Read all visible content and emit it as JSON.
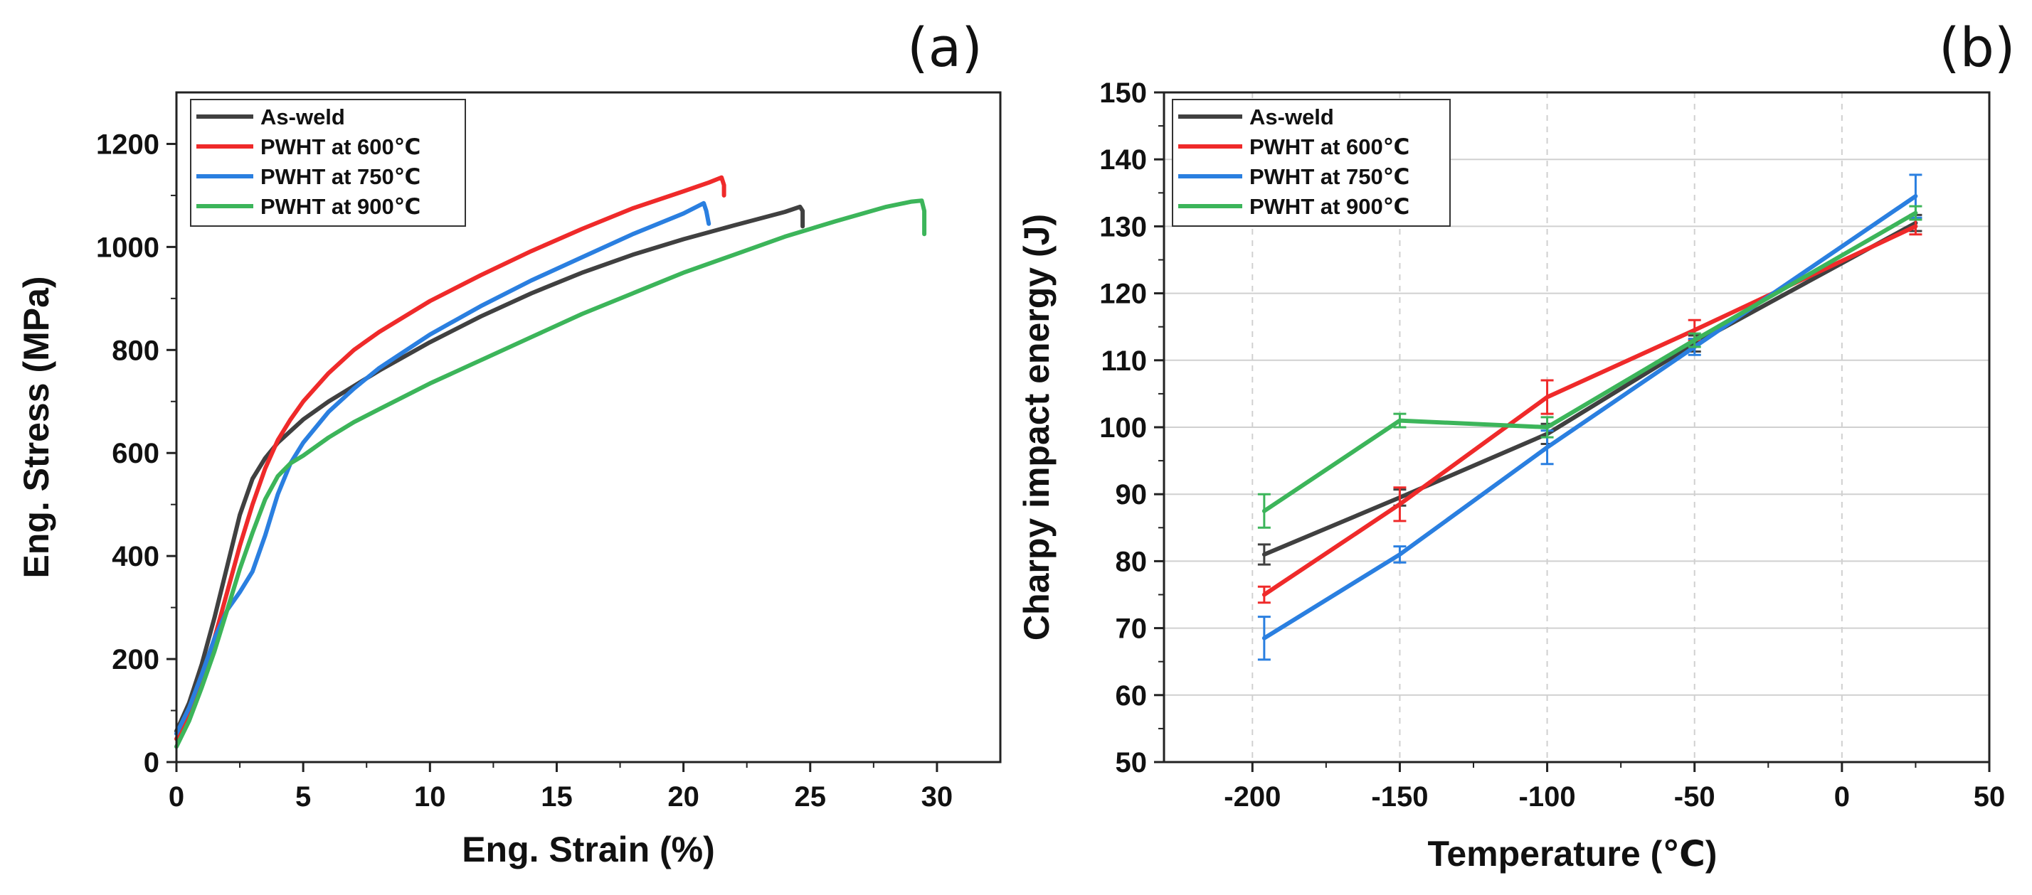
{
  "chart_data": [
    {
      "type": "line",
      "panel_label": "(a)",
      "xlabel": "Eng. Strain (%)",
      "ylabel": "Eng. Stress (MPa)",
      "xlim": [
        0,
        32.5
      ],
      "ylim": [
        0,
        1300
      ],
      "xticks": [
        "0",
        "5",
        "10",
        "15",
        "20",
        "25",
        "30"
      ],
      "yticks": [
        "0",
        "200",
        "400",
        "600",
        "800",
        "1000",
        "1200"
      ],
      "grid": false,
      "legend_position": "top-left",
      "series": [
        {
          "name": "As-weld",
          "color": "#404040",
          "x": [
            0,
            0.5,
            1,
            1.5,
            2,
            2.5,
            3,
            3.5,
            4,
            5,
            6,
            7,
            8,
            10,
            12,
            14,
            16,
            18,
            20,
            22,
            24,
            24.6,
            24.7,
            24.7
          ],
          "y": [
            60,
            115,
            190,
            280,
            380,
            480,
            550,
            590,
            620,
            665,
            700,
            730,
            760,
            815,
            865,
            910,
            950,
            985,
            1015,
            1042,
            1068,
            1078,
            1070,
            1040
          ]
        },
        {
          "name": "PWHT at 600℃",
          "color": "#ef2a2a",
          "x": [
            0,
            0.5,
            1,
            1.5,
            2,
            2.5,
            3,
            3.5,
            4,
            4.5,
            5,
            6,
            7,
            8,
            10,
            12,
            14,
            16,
            18,
            20,
            21,
            21.5,
            21.6,
            21.6
          ],
          "y": [
            45,
            95,
            160,
            240,
            330,
            420,
            500,
            570,
            625,
            665,
            700,
            755,
            800,
            835,
            895,
            945,
            992,
            1035,
            1075,
            1108,
            1125,
            1135,
            1120,
            1100
          ]
        },
        {
          "name": "PWHT at 750℃",
          "color": "#2a7fe0",
          "x": [
            0,
            0.5,
            1,
            1.5,
            2,
            2.5,
            3,
            3.5,
            4,
            4.5,
            5,
            6,
            7,
            8,
            10,
            12,
            14,
            16,
            18,
            20,
            20.8,
            20.9,
            21.0
          ],
          "y": [
            55,
            105,
            170,
            240,
            295,
            330,
            370,
            440,
            520,
            580,
            620,
            680,
            725,
            765,
            830,
            885,
            935,
            980,
            1025,
            1065,
            1085,
            1070,
            1045
          ]
        },
        {
          "name": "PWHT at 900℃",
          "color": "#3cb55a",
          "x": [
            0,
            0.5,
            1,
            1.5,
            2,
            2.5,
            3,
            3.5,
            4,
            4.5,
            5,
            6,
            7,
            8,
            10,
            12,
            14,
            16,
            18,
            20,
            22,
            24,
            26,
            28,
            29,
            29.4,
            29.5,
            29.5
          ],
          "y": [
            30,
            80,
            145,
            215,
            295,
            375,
            445,
            510,
            555,
            580,
            595,
            630,
            660,
            685,
            735,
            780,
            825,
            870,
            910,
            950,
            985,
            1020,
            1050,
            1078,
            1088,
            1090,
            1070,
            1025
          ]
        }
      ]
    },
    {
      "type": "line",
      "panel_label": "(b)",
      "xlabel": "Temperature (℃)",
      "ylabel": "Charpy impact energy (J)",
      "xlim": [
        -230,
        50
      ],
      "ylim": [
        50,
        150
      ],
      "xticks": [
        "-200",
        "-150",
        "-100",
        "-50",
        "0",
        "50"
      ],
      "yticks": [
        "50",
        "60",
        "70",
        "80",
        "90",
        "100",
        "110",
        "120",
        "130",
        "140",
        "150"
      ],
      "grid": true,
      "legend_position": "top-left",
      "x": [
        -196,
        -150,
        -100,
        -50,
        25
      ],
      "series": [
        {
          "name": "As-weld",
          "color": "#404040",
          "values": [
            81,
            89.5,
            99,
            112.5,
            130.5
          ],
          "err": [
            1.5,
            1.2,
            1.5,
            1.2,
            1.2
          ]
        },
        {
          "name": "PWHT at 600℃",
          "color": "#ef2a2a",
          "values": [
            75,
            88.5,
            104.5,
            114.5,
            130
          ],
          "err": [
            1.2,
            2.5,
            2.5,
            1.5,
            1.2
          ]
        },
        {
          "name": "PWHT at 750℃",
          "color": "#2a7fe0",
          "values": [
            68.5,
            81,
            97,
            112,
            134.5
          ],
          "err": [
            3.2,
            1.2,
            2.5,
            1.2,
            3.2
          ]
        },
        {
          "name": "PWHT at 900℃",
          "color": "#3cb55a",
          "values": [
            87.5,
            101,
            100,
            113,
            132
          ],
          "err": [
            2.5,
            1,
            1.5,
            1,
            1
          ]
        }
      ]
    }
  ]
}
